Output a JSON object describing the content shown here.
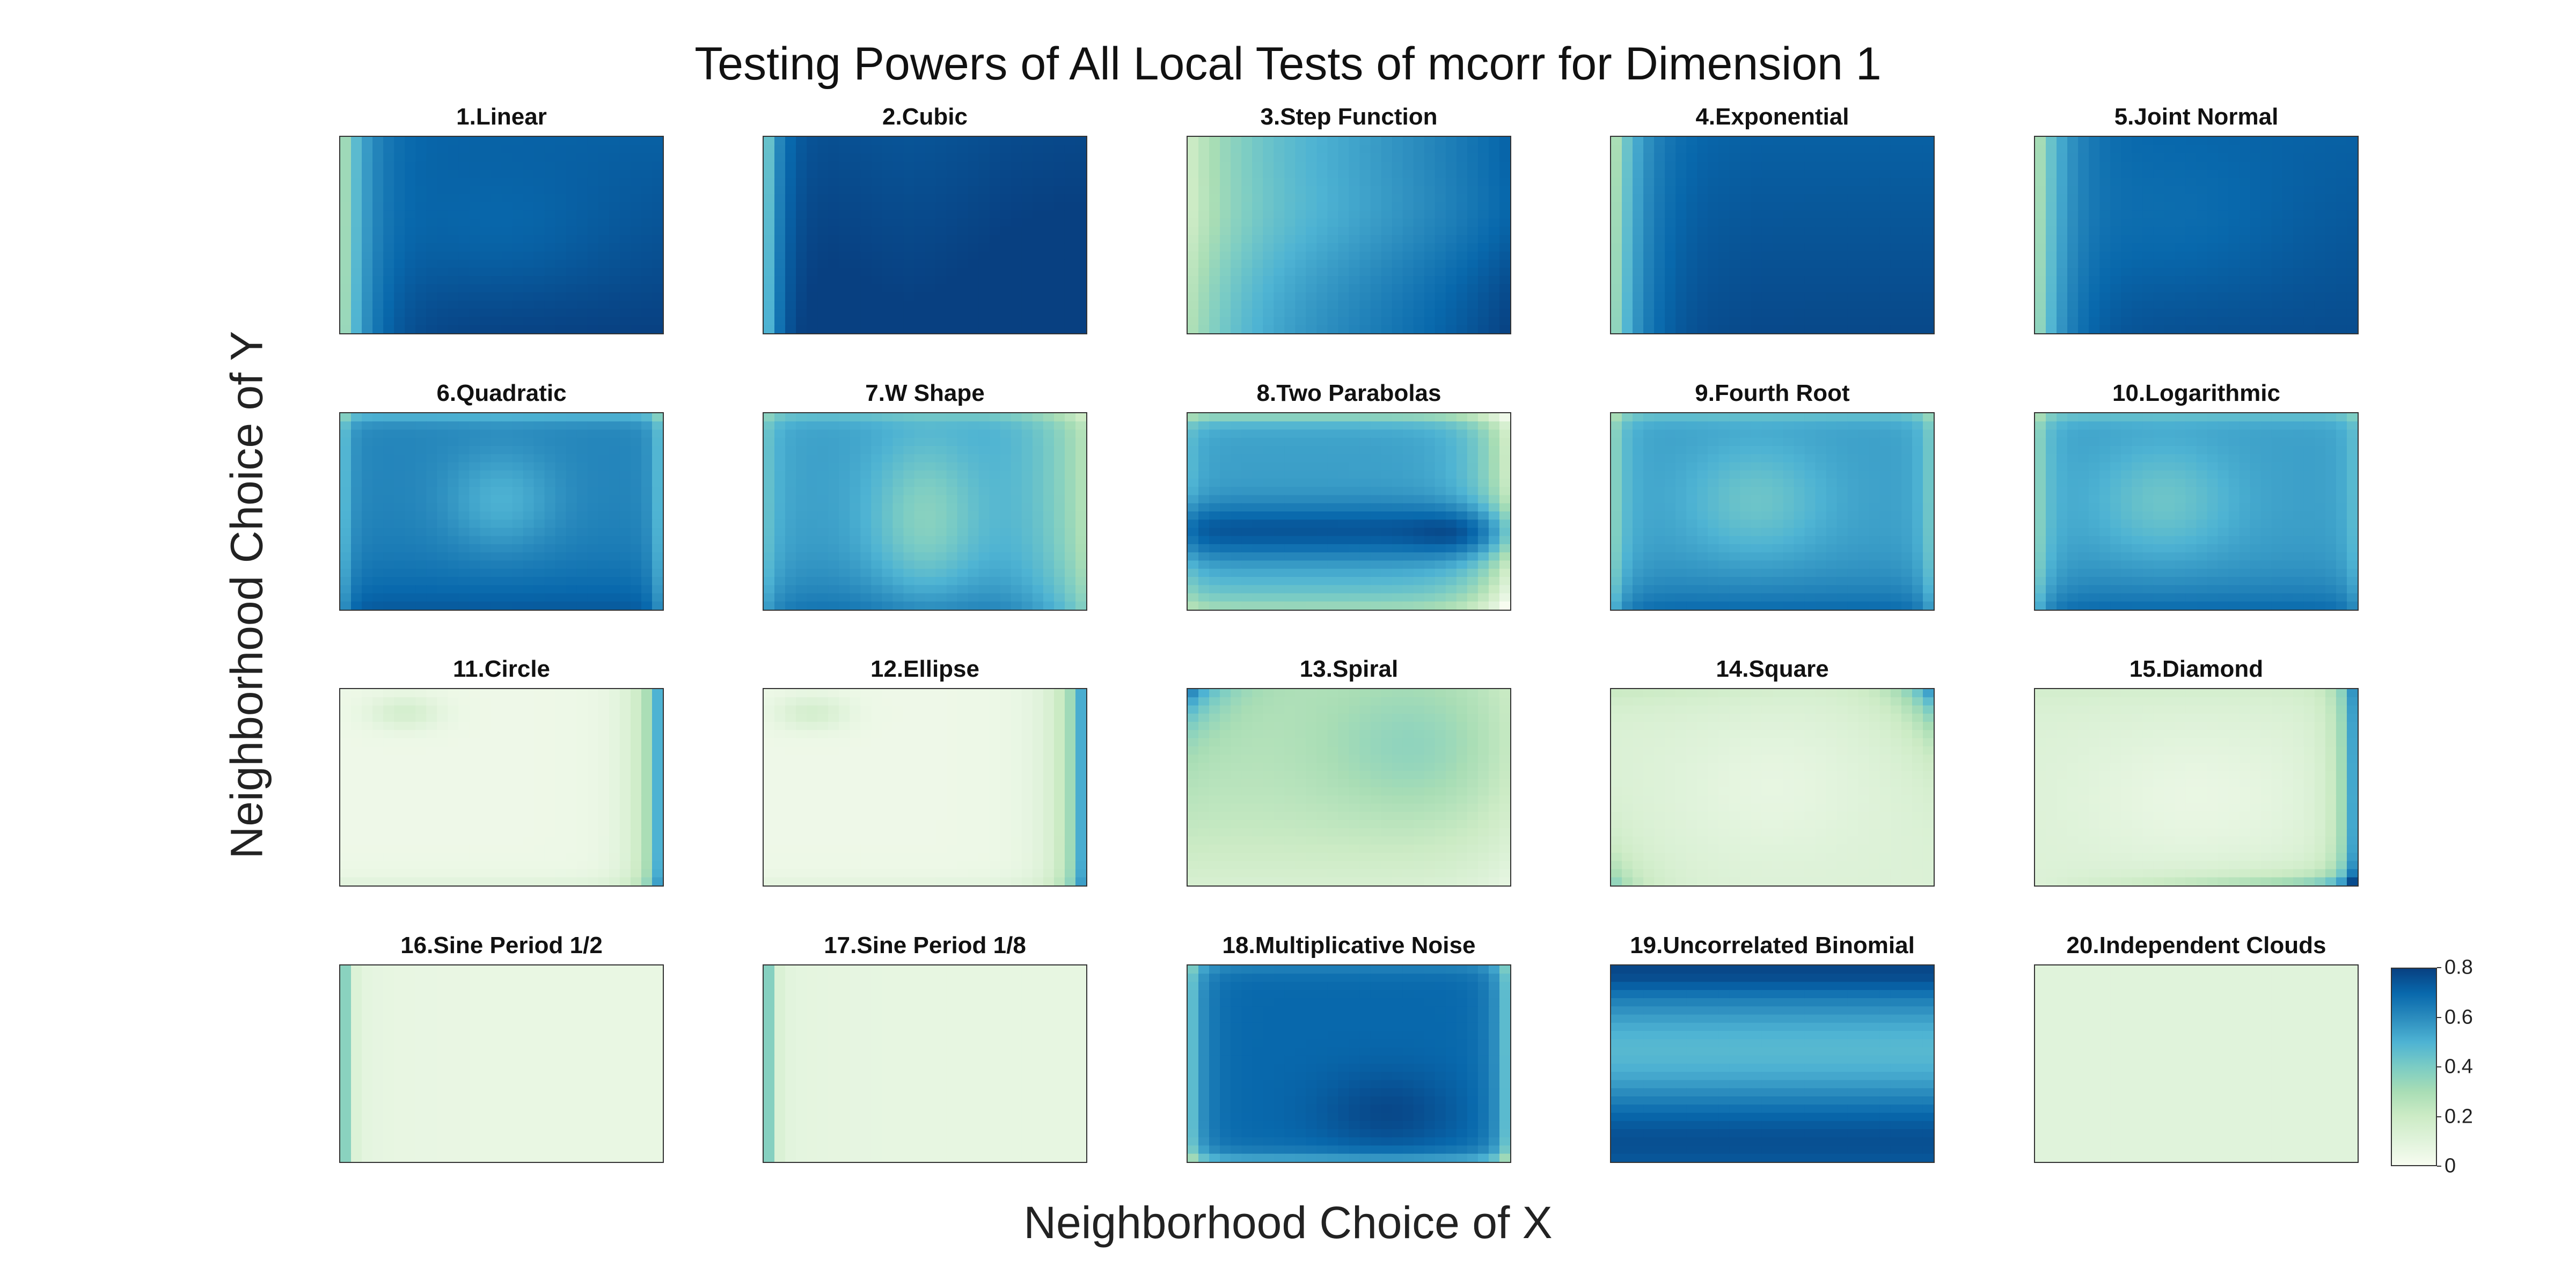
{
  "chart_data": {
    "type": "heatmap",
    "title": "Testing Powers of All Local Tests of mcorr for Dimension 1",
    "xlabel": "Neighborhood Choice of X",
    "ylabel": "Neighborhood Choice of Y",
    "colorbar": {
      "min": 0,
      "max": 0.8,
      "ticks": [
        "0",
        "0.2",
        "0.4",
        "0.6",
        "0.8"
      ]
    },
    "colormap": [
      "#f7fcf0",
      "#e0f3db",
      "#ccebc5",
      "#a8ddb5",
      "#7bccc4",
      "#4eb3d3",
      "#2b8cbe",
      "#0868ac",
      "#084081"
    ],
    "panels": [
      {
        "title": "1.Linear",
        "pattern": "linear"
      },
      {
        "title": "2.Cubic",
        "pattern": "cubic"
      },
      {
        "title": "3.Step Function",
        "pattern": "step"
      },
      {
        "title": "4.Exponential",
        "pattern": "exponential"
      },
      {
        "title": "5.Joint Normal",
        "pattern": "jointnormal"
      },
      {
        "title": "6.Quadratic",
        "pattern": "quadratic"
      },
      {
        "title": "7.W Shape",
        "pattern": "wshape"
      },
      {
        "title": "8.Two Parabolas",
        "pattern": "twoparabolas"
      },
      {
        "title": "9.Fourth Root",
        "pattern": "fourthroot"
      },
      {
        "title": "10.Logarithmic",
        "pattern": "logarithmic"
      },
      {
        "title": "11.Circle",
        "pattern": "circle"
      },
      {
        "title": "12.Ellipse",
        "pattern": "ellipse"
      },
      {
        "title": "13.Spiral",
        "pattern": "spiral"
      },
      {
        "title": "14.Square",
        "pattern": "square"
      },
      {
        "title": "15.Diamond",
        "pattern": "diamond"
      },
      {
        "title": "16.Sine Period 1/2",
        "pattern": "sinehalf"
      },
      {
        "title": "17.Sine Period 1/8",
        "pattern": "sineeighth"
      },
      {
        "title": "18.Multiplicative Noise",
        "pattern": "multnoise"
      },
      {
        "title": "19.Uncorrelated Binomial",
        "pattern": "binomial"
      },
      {
        "title": "20.Independent Clouds",
        "pattern": "clouds"
      }
    ]
  }
}
